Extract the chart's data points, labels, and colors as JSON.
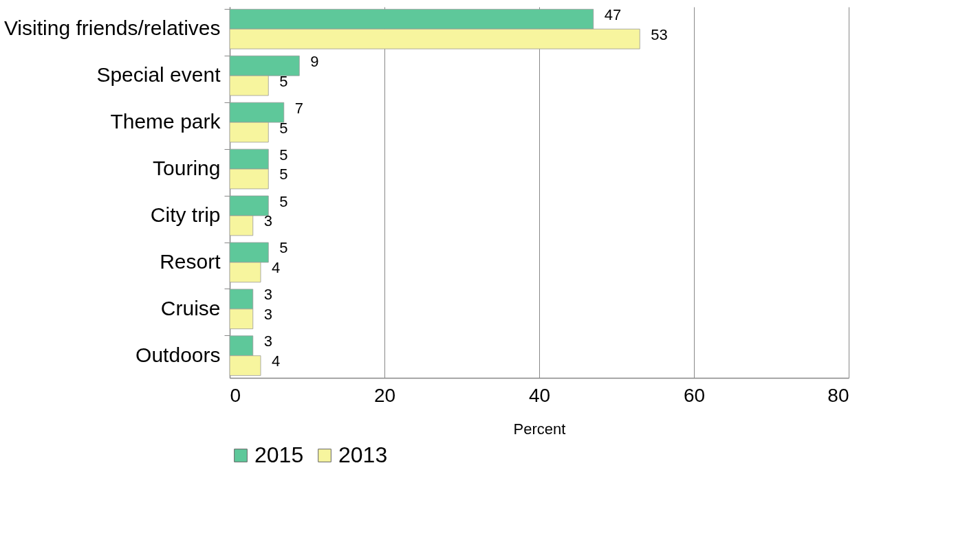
{
  "chart_data": {
    "type": "bar",
    "orientation": "horizontal",
    "xlabel": "Percent",
    "categories": [
      "Visiting friends/relatives",
      "Special event",
      "Theme park",
      "Touring",
      "City trip",
      "Resort",
      "Cruise",
      "Outdoors"
    ],
    "series": [
      {
        "name": "2015",
        "color": "#5ec89a",
        "values": [
          47,
          9,
          7,
          5,
          5,
          5,
          3,
          3
        ]
      },
      {
        "name": "2013",
        "color": "#f7f59e",
        "values": [
          53,
          5,
          5,
          5,
          3,
          4,
          3,
          4
        ]
      }
    ],
    "xlim": [
      0,
      80
    ],
    "xticks": [
      0,
      20,
      40,
      60,
      80
    ],
    "grid": "x",
    "legend": "bottom",
    "data_labels": true
  }
}
